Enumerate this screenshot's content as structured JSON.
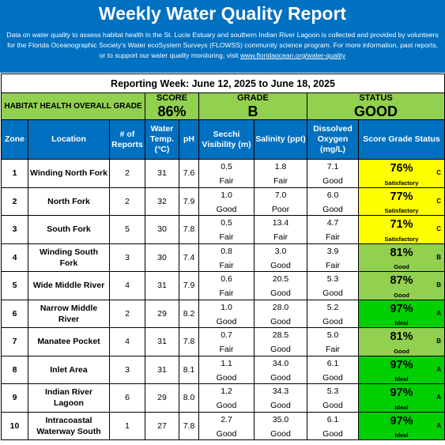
{
  "header": {
    "title": "Weekly Water Quality Report",
    "description": "Data on water quality to assess habitat health in the St. Lucie Estuary and southern Indian River Lagoon is collected and provided by volunteers for the Florida Oceanographic Society's Water ecoSystem Surveys (FLOWSS) community science program.  For more information, past reports, or to support our water quality monitoring, visit",
    "link": "www.floridaocean.org/water-quality"
  },
  "report": {
    "week": "Reporting Week: June 12, 2025 to June 18, 2025"
  },
  "summary": {
    "label": "HABITAT HEALTH OVERALL GRADE",
    "score_label": "SCORE",
    "score": "86%",
    "grade_label": "GRADE",
    "grade": "B",
    "status_label": "STATUS",
    "status": "GOOD"
  },
  "columns": {
    "zone": "Zone",
    "location": "Location",
    "reports": "# of Reports",
    "temp": "Water Temp. (°C)",
    "ph": "pH",
    "secchi": "Secchi Visibility (m)",
    "salinity": "Salinity (ppt)",
    "oxygen": "Dissolved Oxygen (mg/L)",
    "score": "Score Grade Status"
  },
  "colors": {
    "header_blue": "#0070c0",
    "summary_green": "#92d050",
    "satisfactory": "#ffff00",
    "good": "#92d050",
    "ideal": "#00d000"
  },
  "rows": [
    {
      "zone": "1",
      "location": "Winding North Fork",
      "reports": "2",
      "temp": "31",
      "ph": "7.6",
      "secchi": "0.5",
      "secchi_rating": "Fair",
      "salinity": "1.8",
      "salinity_rating": "Fair",
      "oxygen": "7.1",
      "oxygen_rating": "Good",
      "score": "76%",
      "grade": "C",
      "status": "Satisfactory",
      "color": "#ffff00"
    },
    {
      "zone": "2",
      "location": "North Fork",
      "reports": "2",
      "temp": "32",
      "ph": "7.9",
      "secchi": "1.0",
      "secchi_rating": "Good",
      "salinity": "7.0",
      "salinity_rating": "Poor",
      "oxygen": "6.0",
      "oxygen_rating": "Good",
      "score": "77%",
      "grade": "C",
      "status": "Satisfactory",
      "color": "#ffff00"
    },
    {
      "zone": "3",
      "location": "South Fork",
      "reports": "5",
      "temp": "30",
      "ph": "7.8",
      "secchi": "0.5",
      "secchi_rating": "Fair",
      "salinity": "13.4",
      "salinity_rating": "Fair",
      "oxygen": "4.7",
      "oxygen_rating": "Fair",
      "score": "71%",
      "grade": "C",
      "status": "Satisfactory",
      "color": "#ffff00"
    },
    {
      "zone": "4",
      "location": "Winding South Fork",
      "reports": "3",
      "temp": "30",
      "ph": "7.4",
      "secchi": "0.8",
      "secchi_rating": "Fair",
      "salinity": "3.0",
      "salinity_rating": "Good",
      "oxygen": "3.9",
      "oxygen_rating": "Fair",
      "score": "81%",
      "grade": "B",
      "status": "Good",
      "color": "#92d050"
    },
    {
      "zone": "5",
      "location": "Wide Middle River",
      "reports": "4",
      "temp": "31",
      "ph": "7.9",
      "secchi": "0.6",
      "secchi_rating": "Fair",
      "salinity": "20.5",
      "salinity_rating": "Good",
      "oxygen": "5.3",
      "oxygen_rating": "Good",
      "score": "87%",
      "grade": "B",
      "status": "Good",
      "color": "#92d050"
    },
    {
      "zone": "6",
      "location": "Narrow Middle River",
      "reports": "2",
      "temp": "29",
      "ph": "8.2",
      "secchi": "1.0",
      "secchi_rating": "Good",
      "salinity": "28.0",
      "salinity_rating": "Good",
      "oxygen": "5.2",
      "oxygen_rating": "Good",
      "score": "97%",
      "grade": "A",
      "status": "Ideal",
      "color": "#00d000"
    },
    {
      "zone": "7",
      "location": "Manatee Pocket",
      "reports": "4",
      "temp": "31",
      "ph": "7.8",
      "secchi": "0.7",
      "secchi_rating": "Fair",
      "salinity": "28.5",
      "salinity_rating": "Good",
      "oxygen": "5.0",
      "oxygen_rating": "Fair",
      "score": "81%",
      "grade": "B",
      "status": "Good",
      "color": "#92d050"
    },
    {
      "zone": "8",
      "location": "Inlet Area",
      "reports": "3",
      "temp": "31",
      "ph": "8.1",
      "secchi": "1.1",
      "secchi_rating": "Good",
      "salinity": "34.0",
      "salinity_rating": "Good",
      "oxygen": "6.1",
      "oxygen_rating": "Good",
      "score": "97%",
      "grade": "A",
      "status": "Ideal",
      "color": "#00d000"
    },
    {
      "zone": "9",
      "location": "Indian River Lagoon",
      "reports": "6",
      "temp": "29",
      "ph": "8.0",
      "secchi": "1.2",
      "secchi_rating": "Good",
      "salinity": "34.3",
      "salinity_rating": "Good",
      "oxygen": "5.3",
      "oxygen_rating": "Good",
      "score": "97%",
      "grade": "A",
      "status": "Ideal",
      "color": "#00d000"
    },
    {
      "zone": "10",
      "location": "Intracoastal Waterway South",
      "reports": "1",
      "temp": "27",
      "ph": "7.8",
      "secchi": "2.7",
      "secchi_rating": "Good",
      "salinity": "35.0",
      "salinity_rating": "Good",
      "oxygen": "6.1",
      "oxygen_rating": "Good",
      "score": "97%",
      "grade": "A",
      "status": "Ideal",
      "color": "#00d000"
    }
  ]
}
